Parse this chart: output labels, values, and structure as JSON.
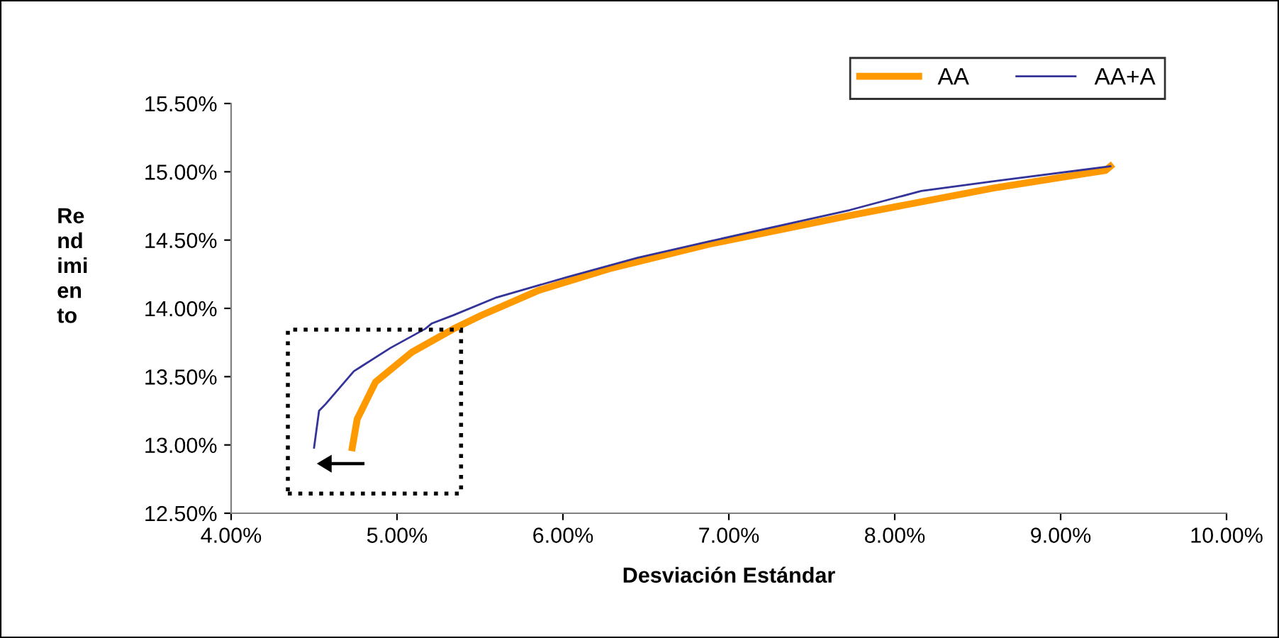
{
  "chart_data": {
    "type": "line",
    "xlabel": "Desviación Estándar",
    "ylabel": "Re\nnd\nimi\nen\nto",
    "xlim": [
      4,
      10
    ],
    "ylim": [
      12.5,
      15.5
    ],
    "xticks": [
      {
        "value": 4,
        "label": "4.00%"
      },
      {
        "value": 5,
        "label": "5.00%"
      },
      {
        "value": 6,
        "label": "6.00%"
      },
      {
        "value": 7,
        "label": "7.00%"
      },
      {
        "value": 8,
        "label": "8.00%"
      },
      {
        "value": 9,
        "label": "9.00%"
      },
      {
        "value": 10,
        "label": "10.00%"
      }
    ],
    "yticks": [
      {
        "value": 12.5,
        "label": "12.50%"
      },
      {
        "value": 13,
        "label": "13.00%"
      },
      {
        "value": 13.5,
        "label": "13.50%"
      },
      {
        "value": 14,
        "label": "14.00%"
      },
      {
        "value": 14.5,
        "label": "14.50%"
      },
      {
        "value": 15,
        "label": "15.00%"
      },
      {
        "value": 15.5,
        "label": "15.50%"
      }
    ],
    "grid": false,
    "legend": "top right",
    "marker": "none",
    "line_style": "solid",
    "series": [
      {
        "name": "AA",
        "color": "#ff9900",
        "x": [
          4.73,
          4.76,
          4.87,
          5.09,
          5.34,
          5.51,
          5.85,
          6.28,
          6.88,
          7.73,
          8.16,
          8.59,
          9.27,
          9.3
        ],
        "values": [
          12.98,
          13.19,
          13.46,
          13.68,
          13.85,
          13.95,
          14.13,
          14.29,
          14.47,
          14.68,
          14.78,
          14.88,
          15.01,
          15.04
        ]
      },
      {
        "name": "AA+A",
        "color": "#333399",
        "x": [
          4.5,
          4.53,
          4.57,
          4.74,
          4.96,
          5.17,
          5.21,
          5.34,
          5.6,
          6.03,
          6.45,
          6.88,
          7.73,
          8.16,
          8.59,
          9.3
        ],
        "values": [
          12.98,
          13.25,
          13.3,
          13.54,
          13.71,
          13.85,
          13.89,
          13.95,
          14.08,
          14.23,
          14.37,
          14.49,
          14.72,
          14.86,
          14.93,
          15.04
        ]
      }
    ]
  }
}
